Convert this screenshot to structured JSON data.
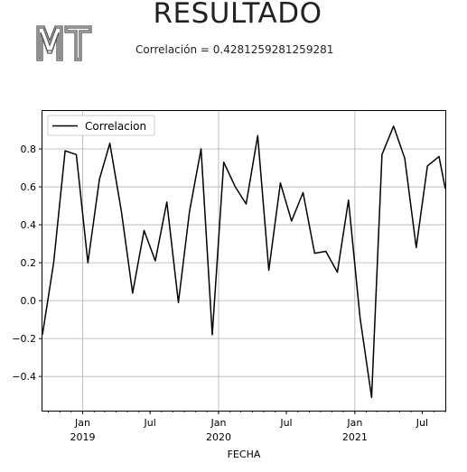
{
  "header": {
    "logo_text": "MT",
    "title": "RESULTADO",
    "subtitle": "Correlación = 0.4281259281259281"
  },
  "colors": {
    "line": "#000000",
    "grid": "#b0b0b0",
    "frame": "#000000",
    "logo": "#555555"
  },
  "chart_data": {
    "type": "line",
    "xlabel": "FECHA",
    "ylabel": "",
    "legend": {
      "placement": "top-left",
      "entries": [
        "Correlacion"
      ]
    },
    "grid": true,
    "xlim": [
      "2018-09-15",
      "2021-09-01"
    ],
    "ylim": [
      -0.58,
      1.0
    ],
    "y_ticks": [
      -0.4,
      -0.2,
      0.0,
      0.2,
      0.4,
      0.6,
      0.8
    ],
    "y_tick_labels": [
      "−0.4",
      "−0.2",
      "0.0",
      "0.2",
      "0.4",
      "0.6",
      "0.8"
    ],
    "x_ticks": [
      {
        "date": "2019-01-01",
        "label": "Jan",
        "sublabel": "2019",
        "gridline": true
      },
      {
        "date": "2019-07-01",
        "label": "Jul",
        "sublabel": "",
        "gridline": false
      },
      {
        "date": "2020-01-01",
        "label": "Jan",
        "sublabel": "2020",
        "gridline": true
      },
      {
        "date": "2020-07-01",
        "label": "Jul",
        "sublabel": "",
        "gridline": false
      },
      {
        "date": "2021-01-01",
        "label": "Jan",
        "sublabel": "2021",
        "gridline": true
      },
      {
        "date": "2021-07-01",
        "label": "Jul",
        "sublabel": "",
        "gridline": false
      }
    ],
    "series": [
      {
        "name": "Correlacion",
        "x": [
          "2018-09-15",
          "2018-10-15",
          "2018-11-15",
          "2018-12-15",
          "2019-01-15",
          "2019-02-15",
          "2019-03-15",
          "2019-04-15",
          "2019-05-15",
          "2019-06-15",
          "2019-07-15",
          "2019-08-15",
          "2019-09-15",
          "2019-10-15",
          "2019-11-15",
          "2019-12-15",
          "2020-01-15",
          "2020-02-15",
          "2020-03-15",
          "2020-04-15",
          "2020-05-15",
          "2020-06-15",
          "2020-07-15",
          "2020-08-15",
          "2020-09-15",
          "2020-10-15",
          "2020-11-15",
          "2020-12-15",
          "2021-01-15",
          "2021-02-15",
          "2021-03-15",
          "2021-04-15",
          "2021-05-15",
          "2021-06-15",
          "2021-07-15",
          "2021-08-15",
          "2021-09-01"
        ],
        "values": [
          -0.18,
          0.2,
          0.79,
          0.77,
          0.2,
          0.64,
          0.83,
          0.47,
          0.04,
          0.37,
          0.21,
          0.52,
          -0.01,
          0.47,
          0.8,
          -0.18,
          0.73,
          0.6,
          0.51,
          0.87,
          0.16,
          0.62,
          0.42,
          0.57,
          0.25,
          0.26,
          0.15,
          0.53,
          -0.09,
          -0.51,
          0.77,
          0.92,
          0.75,
          0.28,
          0.71,
          0.76,
          0.59
        ]
      }
    ]
  }
}
